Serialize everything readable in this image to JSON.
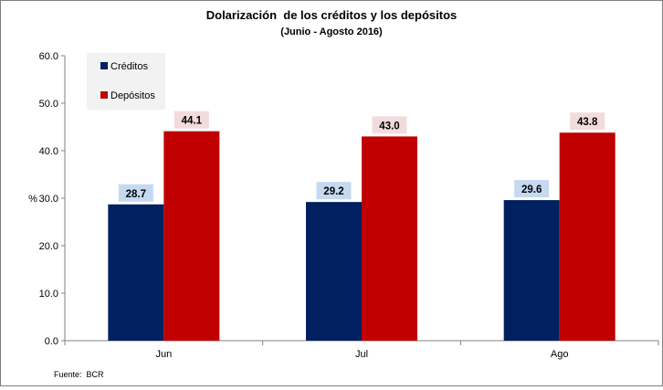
{
  "chart_data": {
    "type": "bar",
    "title": "Dolarización  de los créditos y los depósitos",
    "subtitle": "(Junio - Agosto 2016)",
    "ylabel": "%",
    "xlabel": "",
    "ylim": [
      0,
      60
    ],
    "yticks": [
      0,
      10,
      20,
      30,
      40,
      50,
      60
    ],
    "ytick_labels": [
      "0.0",
      "10.0",
      "20.0",
      "30.0",
      "40.0",
      "50.0",
      "60.0"
    ],
    "categories": [
      "Jun",
      "Jul",
      "Ago"
    ],
    "series": [
      {
        "name": "Créditos",
        "values": [
          28.7,
          29.2,
          29.6
        ],
        "labels": [
          "28.7",
          "29.2",
          "29.6"
        ],
        "color": "#002060",
        "label_bg": "#c5d9f1"
      },
      {
        "name": "Depósitos",
        "values": [
          44.1,
          43.0,
          43.8
        ],
        "labels": [
          "44.1",
          "43.0",
          "43.8"
        ],
        "color": "#c00000",
        "label_bg": "#f2dcdb"
      }
    ],
    "legend_position": "top-left",
    "legend_bg": "#f2f2f2",
    "grid": false,
    "source": "Fuente:  BCR"
  }
}
